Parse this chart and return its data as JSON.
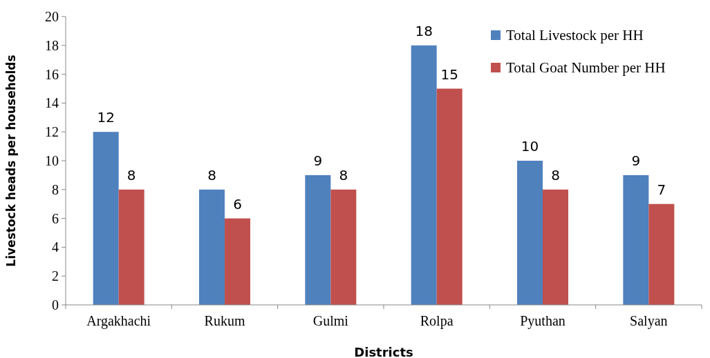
{
  "chart_data": {
    "type": "bar",
    "xlabel": "Districts",
    "ylabel": "Livestock heads per households",
    "categories": [
      "Argakhachi",
      "Rukum",
      "Gulmi",
      "Rolpa",
      "Pyuthan",
      "Salyan"
    ],
    "series": [
      {
        "name": "Total Livestock per HH",
        "color": "#4f81bd",
        "values": [
          12,
          8,
          9,
          18,
          10,
          9
        ]
      },
      {
        "name": "Total Goat Number per HH",
        "color": "#c0504d",
        "values": [
          8,
          6,
          8,
          15,
          8,
          7
        ]
      }
    ],
    "ylim": [
      0,
      20
    ],
    "yticks": [
      0,
      2,
      4,
      6,
      8,
      10,
      12,
      14,
      16,
      18,
      20
    ],
    "data_labels": true,
    "legend": "top right",
    "grid": false
  }
}
